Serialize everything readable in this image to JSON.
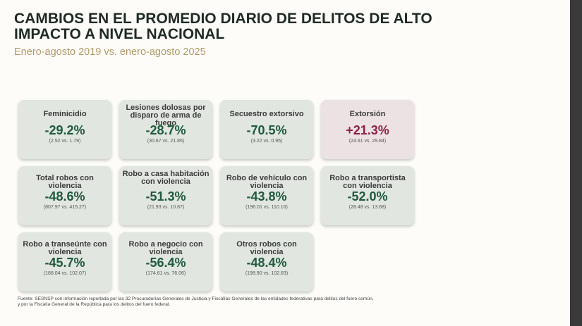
{
  "header": {
    "title": "CAMBIOS EN EL PROMEDIO DIARIO DE DELITOS DE ALTO IMPACTO A NIVEL NACIONAL",
    "subtitle": "Enero-agosto 2019 vs. enero-agosto 2025"
  },
  "cards": [
    {
      "label": "Feminicidio",
      "value": "-29.2%",
      "detail": "(2.52 vs. 1.79)"
    },
    {
      "label": "Lesiones dolosas por disparo de arma de fuego",
      "value": "-28.7%",
      "detail": "(30.67 vs. 21.85)"
    },
    {
      "label": "Secuestro extorsivo",
      "value": "-70.5%",
      "detail": "(3.22 vs. 0.95)"
    },
    {
      "label": "Extorsión",
      "value": "+21.3%",
      "detail": "(24.61 vs. 29.84)"
    },
    {
      "label": "Total robos con violencia",
      "value": "-48.6%",
      "detail": "(807.97 vs. 415.27)"
    },
    {
      "label": "Robo a casa habitación con violencia",
      "value": "-51.3%",
      "detail": "(21.93 vs. 10.67)"
    },
    {
      "label": "Robo de vehículo con violencia",
      "value": "-43.8%",
      "detail": "(196.01 vs. 110.16)"
    },
    {
      "label": "Robo a transportista con violencia",
      "value": "-52.0%",
      "detail": "(28.48 vs. 13.68)"
    },
    {
      "label": "Robo a transeúnte con violencia",
      "value": "-45.7%",
      "detail": "(188.04 vs. 102.07)"
    },
    {
      "label": "Robo a negocio con violencia",
      "value": "-56.4%",
      "detail": "(174.61 vs. 76.06)"
    },
    {
      "label": "Otros robos con violencia",
      "value": "-48.4%",
      "detail": "(198.90 vs. 102.63)"
    }
  ],
  "footer": {
    "source_line1": "Fuente: SESNSP con información reportada por las 32 Procuradurías Generales de Justicia y Fiscalías Generales de las entidades federativas para delitos del fuero común,",
    "source_line2": "y por la Fiscalía General de la República para los delitos del fuero federal."
  },
  "colors": {
    "decrease": "#1f5a3c",
    "increase": "#8e2146",
    "card_bg": "#e1e6e0",
    "card_bg_alert": "#ece2e4"
  }
}
